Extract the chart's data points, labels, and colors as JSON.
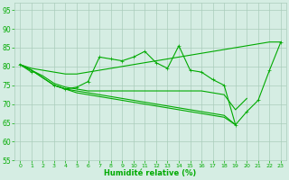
{
  "xlabel": "Humidité relative (%)",
  "x": [
    0,
    1,
    2,
    3,
    4,
    5,
    6,
    7,
    8,
    9,
    10,
    11,
    12,
    13,
    14,
    15,
    16,
    17,
    18,
    19,
    20,
    21,
    22,
    23
  ],
  "line_jagged": [
    80.5,
    78.5,
    null,
    75.0,
    74.0,
    74.5,
    76.0,
    82.5,
    82.0,
    81.5,
    82.5,
    84.0,
    81.0,
    79.5,
    85.5,
    79.0,
    78.5,
    76.5,
    75.0,
    64.5,
    68.0,
    71.0,
    79.0,
    86.5
  ],
  "line_up": [
    80.5,
    79.5,
    79.0,
    78.5,
    78.0,
    78.0,
    78.5,
    79.0,
    79.5,
    80.0,
    80.5,
    81.0,
    81.5,
    82.0,
    82.5,
    83.0,
    83.5,
    84.0,
    84.5,
    85.0,
    85.5,
    86.0,
    86.5,
    86.5
  ],
  "line_mid1": [
    80.5,
    79.0,
    77.5,
    75.5,
    74.5,
    74.0,
    73.5,
    73.5,
    73.5,
    73.5,
    73.5,
    73.5,
    73.5,
    73.5,
    73.5,
    73.5,
    73.5,
    73.0,
    72.5,
    68.5,
    71.5,
    null,
    null,
    null
  ],
  "line_mid2": [
    80.5,
    79.0,
    77.0,
    75.0,
    74.0,
    73.5,
    73.0,
    72.5,
    72.0,
    71.5,
    71.0,
    70.5,
    70.0,
    69.5,
    69.0,
    68.5,
    68.0,
    67.5,
    67.0,
    64.5,
    null,
    null,
    null,
    null
  ],
  "line_low": [
    80.5,
    79.0,
    77.0,
    75.0,
    74.0,
    73.0,
    72.5,
    72.0,
    71.5,
    71.0,
    70.5,
    70.0,
    69.5,
    69.0,
    68.5,
    68.0,
    67.5,
    67.0,
    66.5,
    64.5,
    null,
    null,
    null,
    null
  ],
  "background_color": "#d5ede3",
  "grid_color": "#aaccbb",
  "line_color": "#00aa00",
  "ylim": [
    55,
    97
  ],
  "yticks": [
    55,
    60,
    65,
    70,
    75,
    80,
    85,
    90,
    95
  ],
  "xlim": [
    -0.5,
    23.5
  ]
}
